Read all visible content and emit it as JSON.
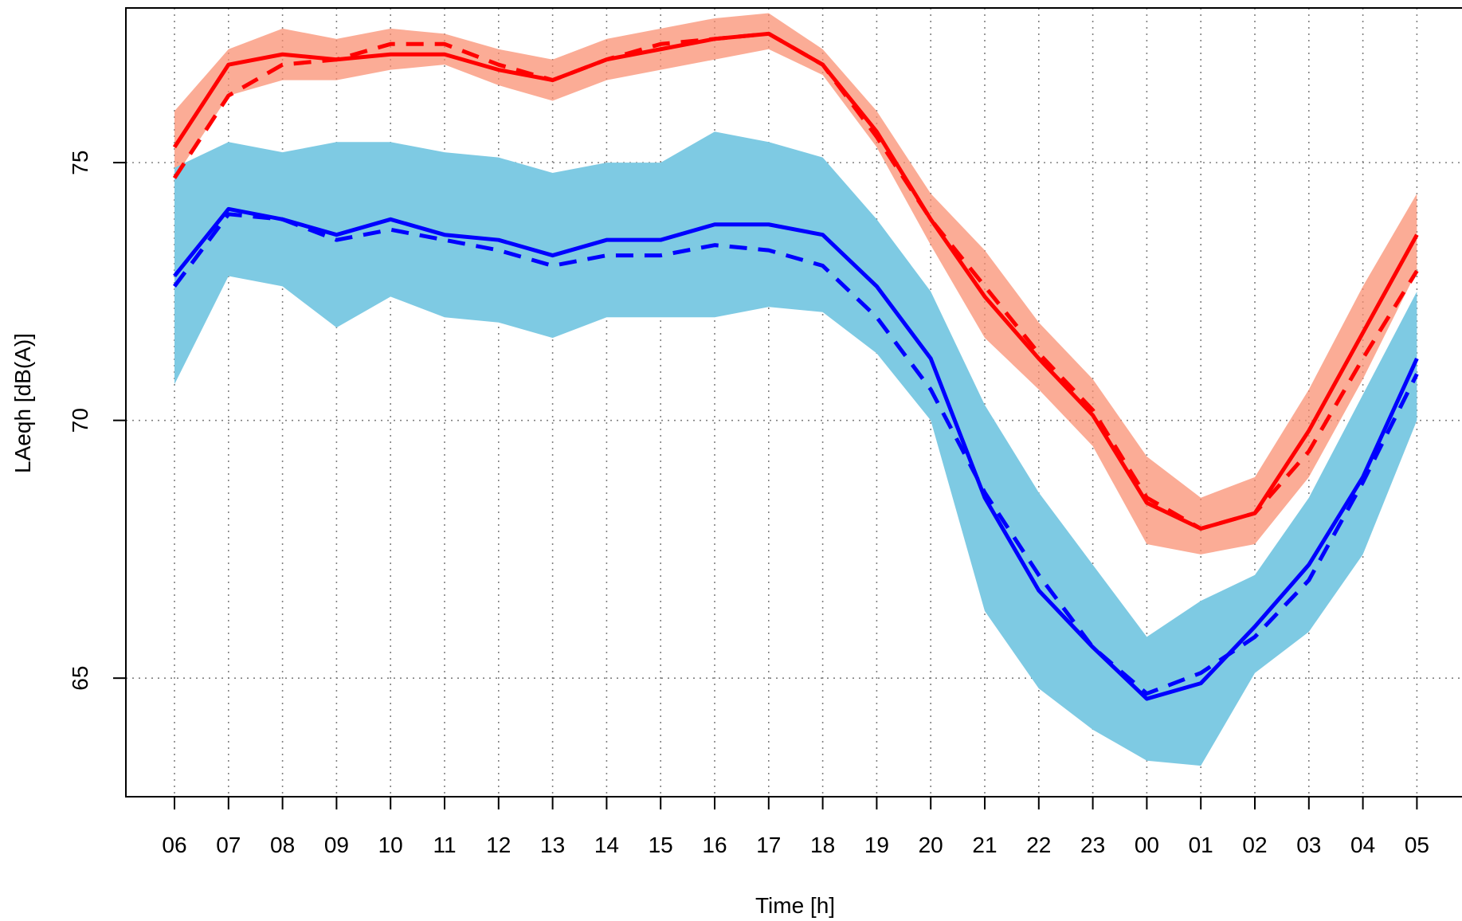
{
  "chart_data": {
    "type": "line",
    "title": "",
    "xlabel": "Time [h]",
    "ylabel": "LAeqh [dB(A)]",
    "categories": [
      "06",
      "07",
      "08",
      "09",
      "10",
      "11",
      "12",
      "13",
      "14",
      "15",
      "16",
      "17",
      "18",
      "19",
      "20",
      "21",
      "22",
      "23",
      "00",
      "01",
      "02",
      "03",
      "04",
      "05"
    ],
    "yticks": [
      65,
      70,
      75
    ],
    "ylim": [
      62.7,
      78.0
    ],
    "grid": true,
    "series": [
      {
        "color": "#ff0000",
        "line_style": "solid",
        "values": [
          75.3,
          76.9,
          77.1,
          77.0,
          77.1,
          77.1,
          76.8,
          76.6,
          77.0,
          77.2,
          77.4,
          77.5,
          76.9,
          75.6,
          73.9,
          72.4,
          71.2,
          70.1,
          68.4,
          67.9,
          68.2,
          69.8,
          71.7,
          73.6
        ]
      },
      {
        "color": "#ff0000",
        "line_style": "dashed",
        "values": [
          74.7,
          76.3,
          76.9,
          77.0,
          77.3,
          77.3,
          76.9,
          76.6,
          77.0,
          77.3,
          77.4,
          77.5,
          76.9,
          75.5,
          73.9,
          72.6,
          71.3,
          70.2,
          68.5,
          67.9,
          68.2,
          69.4,
          71.2,
          72.9
        ]
      },
      {
        "color": "#0000ff",
        "line_style": "solid",
        "values": [
          72.8,
          74.1,
          73.9,
          73.6,
          73.9,
          73.6,
          73.5,
          73.2,
          73.5,
          73.5,
          73.8,
          73.8,
          73.6,
          72.6,
          71.2,
          68.5,
          66.7,
          65.6,
          64.6,
          64.9,
          66.0,
          67.2,
          68.9,
          71.2
        ]
      },
      {
        "color": "#0000ff",
        "line_style": "dashed",
        "values": [
          72.6,
          74.0,
          73.9,
          73.5,
          73.7,
          73.5,
          73.3,
          73.0,
          73.2,
          73.2,
          73.4,
          73.3,
          73.0,
          72.0,
          70.6,
          68.6,
          67.0,
          65.6,
          64.7,
          65.1,
          65.8,
          66.9,
          68.8,
          70.9
        ]
      }
    ],
    "bands": [
      {
        "color": "#fa8c6e",
        "opacity": 0.72,
        "lower": [
          74.7,
          76.3,
          76.6,
          76.6,
          76.8,
          76.9,
          76.5,
          76.2,
          76.6,
          76.8,
          77.0,
          77.2,
          76.7,
          75.3,
          73.4,
          71.6,
          70.6,
          69.5,
          67.6,
          67.4,
          67.6,
          68.9,
          70.8,
          72.9
        ],
        "upper": [
          76.0,
          77.2,
          77.6,
          77.4,
          77.6,
          77.5,
          77.2,
          77.0,
          77.4,
          77.6,
          77.8,
          77.9,
          77.2,
          76.0,
          74.4,
          73.3,
          71.9,
          70.8,
          69.3,
          68.5,
          68.9,
          70.6,
          72.6,
          74.4
        ]
      },
      {
        "color": "#7ecae3",
        "opacity": 1.0,
        "lower": [
          70.7,
          72.8,
          72.6,
          71.8,
          72.4,
          72.0,
          71.9,
          71.6,
          72.0,
          72.0,
          72.0,
          72.2,
          72.1,
          71.3,
          70.0,
          66.3,
          64.8,
          64.0,
          63.4,
          63.3,
          65.1,
          65.9,
          67.4,
          70.0
        ],
        "upper": [
          74.9,
          75.4,
          75.2,
          75.4,
          75.4,
          75.2,
          75.1,
          74.8,
          75.0,
          75.0,
          75.6,
          75.4,
          75.1,
          73.9,
          72.5,
          70.3,
          68.6,
          67.2,
          65.8,
          66.5,
          67.0,
          68.5,
          70.5,
          72.5
        ]
      }
    ]
  }
}
